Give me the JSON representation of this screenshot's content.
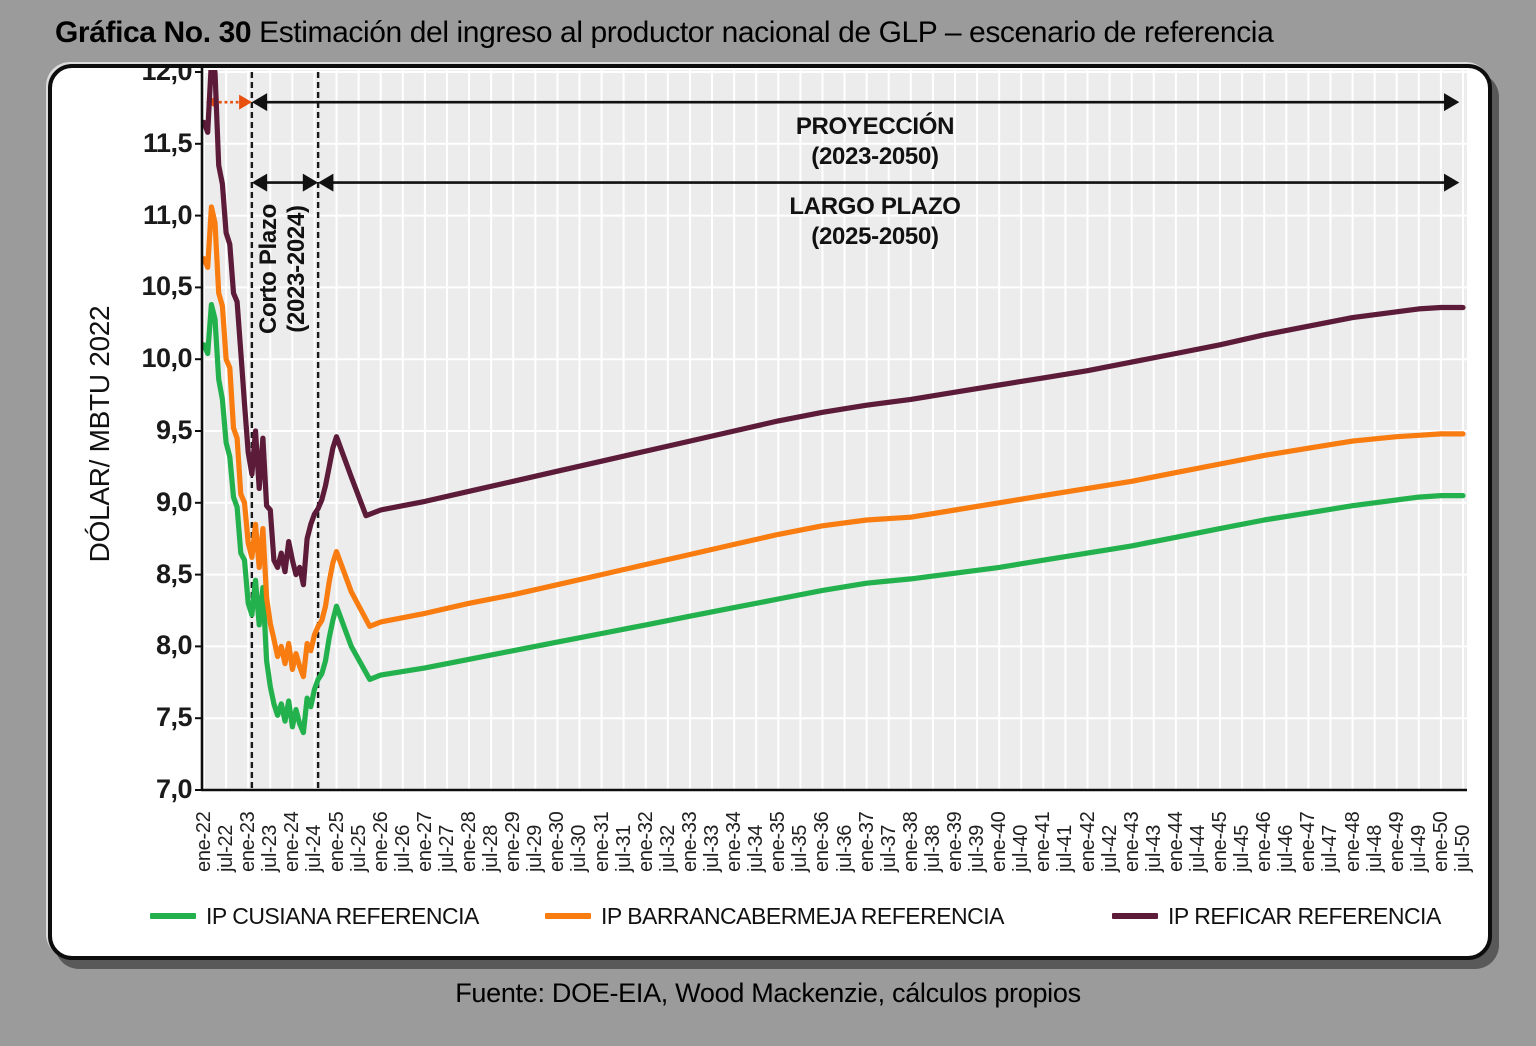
{
  "title": {
    "prefix": "Gráfica No. 30",
    "rest": " Estimación del ingreso al productor nacional de GLP – escenario de referencia"
  },
  "source": "Fuente: DOE-EIA, Wood Mackenzie, cálculos propios",
  "annotations": {
    "proyeccion": {
      "line1": "PROYECCIÓN",
      "line2": "(2023-2050)"
    },
    "largo_plazo": {
      "line1": "LARGO PLAZO",
      "line2": "(2025-2050)"
    },
    "corto_plazo": {
      "line1": "Corto Plazo",
      "line2": "(2023-2024)"
    }
  },
  "y_axis": {
    "title": "DÓLAR/ MBTU 2022",
    "labels": [
      "12,0",
      "11,5",
      "11,0",
      "10,5",
      "10,0",
      "9,5",
      "9,0",
      "8,5",
      "8,0",
      "7,5",
      "7,0"
    ],
    "min": 7.0,
    "max": 12.0,
    "step": 0.5
  },
  "x_axis": {
    "labels": [
      "ene-22",
      "jul-22",
      "ene-23",
      "jul-23",
      "ene-24",
      "jul-24",
      "ene-25",
      "jul-25",
      "ene-26",
      "jul-26",
      "ene-27",
      "jul-27",
      "ene-28",
      "jul-28",
      "ene-29",
      "jul-29",
      "ene-30",
      "jul-30",
      "ene-31",
      "jul-31",
      "ene-32",
      "jul-32",
      "ene-33",
      "jul-33",
      "ene-34",
      "jul-34",
      "ene-35",
      "jul-35",
      "ene-36",
      "jul-36",
      "ene-37",
      "jul-37",
      "ene-38",
      "jul-38",
      "ene-39",
      "jul-39",
      "ene-40",
      "jul-40",
      "ene-41",
      "jul-41",
      "ene-42",
      "jul-42",
      "ene-43",
      "jul-43",
      "ene-44",
      "jul-44",
      "ene-45",
      "jul-45",
      "ene-46",
      "jul-46",
      "ene-47",
      "jul-47",
      "ene-48",
      "jul-48",
      "ene-49",
      "jul-49",
      "ene-50",
      "jul-50"
    ]
  },
  "legend": [
    {
      "label": "IP CUSIANA REFERENCIA",
      "color": "#22B14C"
    },
    {
      "label": "IP BARRANCABERMEJA REFERENCIA",
      "color": "#F87C10"
    },
    {
      "label": "IP REFICAR REFERENCIA",
      "color": "#5C1B38"
    }
  ],
  "chart_data": {
    "type": "line",
    "title": "Estimación del ingreso al productor nacional de GLP – escenario de referencia",
    "ylabel": "DÓLAR/ MBTU 2022",
    "ylim": [
      7.0,
      12.0
    ],
    "grid": true,
    "legend_position": "bottom",
    "x_unit": "month index, 0 = ene-22 ... 342 = jul-50",
    "dashed_vlines_month": [
      13,
      31
    ],
    "arrows": [
      {
        "name": "proyeccion",
        "y_value": 11.79,
        "from_month": 13,
        "to_month": 341,
        "color": "#111111",
        "heads": "both"
      },
      {
        "name": "corto-plazo-orange",
        "y_value": 11.79,
        "from_month": 0.5,
        "to_month": 13,
        "color": "#E8500F",
        "style": "dotted",
        "heads": "both"
      },
      {
        "name": "corto-plazo-black",
        "y_value": 11.23,
        "from_month": 13,
        "to_month": 31,
        "color": "#111111",
        "heads": "both"
      },
      {
        "name": "largo-plazo",
        "y_value": 11.23,
        "from_month": 31,
        "to_month": 341,
        "color": "#111111",
        "heads": "both"
      }
    ],
    "series": [
      {
        "name": "IP CUSIANA REFERENCIA",
        "color": "#22B14C",
        "points": [
          [
            0,
            10.1
          ],
          [
            1,
            10.04
          ],
          [
            2,
            10.38
          ],
          [
            3,
            10.28
          ],
          [
            4,
            9.86
          ],
          [
            5,
            9.72
          ],
          [
            6,
            9.42
          ],
          [
            7,
            9.32
          ],
          [
            8,
            9.04
          ],
          [
            9,
            8.97
          ],
          [
            10,
            8.65
          ],
          [
            11,
            8.6
          ],
          [
            12,
            8.3
          ],
          [
            13,
            8.22
          ],
          [
            14,
            8.46
          ],
          [
            15,
            8.15
          ],
          [
            16,
            8.41
          ],
          [
            17,
            7.9
          ],
          [
            18,
            7.72
          ],
          [
            19,
            7.6
          ],
          [
            20,
            7.52
          ],
          [
            21,
            7.6
          ],
          [
            22,
            7.48
          ],
          [
            23,
            7.62
          ],
          [
            24,
            7.44
          ],
          [
            25,
            7.56
          ],
          [
            26,
            7.46
          ],
          [
            27,
            7.4
          ],
          [
            28,
            7.64
          ],
          [
            29,
            7.58
          ],
          [
            30,
            7.7
          ],
          [
            31,
            7.77
          ],
          [
            32,
            7.81
          ],
          [
            33,
            7.9
          ],
          [
            34,
            8.06
          ],
          [
            35,
            8.18
          ],
          [
            36,
            8.28
          ],
          [
            40,
            8.0
          ],
          [
            45,
            7.77
          ],
          [
            48,
            7.8
          ],
          [
            60,
            7.85
          ],
          [
            72,
            7.91
          ],
          [
            84,
            7.97
          ],
          [
            96,
            8.03
          ],
          [
            108,
            8.09
          ],
          [
            120,
            8.15
          ],
          [
            132,
            8.21
          ],
          [
            144,
            8.27
          ],
          [
            156,
            8.33
          ],
          [
            168,
            8.39
          ],
          [
            180,
            8.44
          ],
          [
            192,
            8.47
          ],
          [
            204,
            8.51
          ],
          [
            216,
            8.55
          ],
          [
            228,
            8.6
          ],
          [
            240,
            8.65
          ],
          [
            252,
            8.7
          ],
          [
            264,
            8.76
          ],
          [
            276,
            8.82
          ],
          [
            288,
            8.88
          ],
          [
            300,
            8.93
          ],
          [
            312,
            8.98
          ],
          [
            324,
            9.02
          ],
          [
            330,
            9.04
          ],
          [
            336,
            9.05
          ],
          [
            342,
            9.05
          ]
        ]
      },
      {
        "name": "IP BARRANCABERMEJA REFERENCIA",
        "color": "#F87C10",
        "points": [
          [
            0,
            10.7
          ],
          [
            1,
            10.64
          ],
          [
            2,
            11.06
          ],
          [
            3,
            10.95
          ],
          [
            4,
            10.46
          ],
          [
            5,
            10.37
          ],
          [
            6,
            10.0
          ],
          [
            7,
            9.94
          ],
          [
            8,
            9.52
          ],
          [
            9,
            9.45
          ],
          [
            10,
            9.06
          ],
          [
            11,
            9.0
          ],
          [
            12,
            8.72
          ],
          [
            13,
            8.62
          ],
          [
            14,
            8.85
          ],
          [
            15,
            8.55
          ],
          [
            16,
            8.82
          ],
          [
            17,
            8.34
          ],
          [
            18,
            8.16
          ],
          [
            19,
            8.05
          ],
          [
            20,
            7.93
          ],
          [
            21,
            8.0
          ],
          [
            22,
            7.88
          ],
          [
            23,
            8.02
          ],
          [
            24,
            7.84
          ],
          [
            25,
            7.95
          ],
          [
            26,
            7.86
          ],
          [
            27,
            7.79
          ],
          [
            28,
            8.02
          ],
          [
            29,
            7.97
          ],
          [
            30,
            8.08
          ],
          [
            31,
            8.14
          ],
          [
            32,
            8.18
          ],
          [
            33,
            8.28
          ],
          [
            34,
            8.45
          ],
          [
            35,
            8.58
          ],
          [
            36,
            8.66
          ],
          [
            40,
            8.38
          ],
          [
            45,
            8.14
          ],
          [
            48,
            8.17
          ],
          [
            60,
            8.23
          ],
          [
            72,
            8.3
          ],
          [
            84,
            8.36
          ],
          [
            96,
            8.43
          ],
          [
            108,
            8.5
          ],
          [
            120,
            8.57
          ],
          [
            132,
            8.64
          ],
          [
            144,
            8.71
          ],
          [
            156,
            8.78
          ],
          [
            168,
            8.84
          ],
          [
            180,
            8.88
          ],
          [
            192,
            8.9
          ],
          [
            204,
            8.95
          ],
          [
            216,
            9.0
          ],
          [
            228,
            9.05
          ],
          [
            240,
            9.1
          ],
          [
            252,
            9.15
          ],
          [
            264,
            9.21
          ],
          [
            276,
            9.27
          ],
          [
            288,
            9.33
          ],
          [
            300,
            9.38
          ],
          [
            312,
            9.43
          ],
          [
            324,
            9.46
          ],
          [
            330,
            9.47
          ],
          [
            336,
            9.48
          ],
          [
            342,
            9.48
          ]
        ]
      },
      {
        "name": "IP REFICAR REFERENCIA",
        "color": "#5C1B38",
        "points": [
          [
            0,
            11.65
          ],
          [
            1,
            11.58
          ],
          [
            2,
            12.07
          ],
          [
            3,
            12.0
          ],
          [
            4,
            11.35
          ],
          [
            5,
            11.22
          ],
          [
            6,
            10.88
          ],
          [
            7,
            10.8
          ],
          [
            8,
            10.46
          ],
          [
            9,
            10.4
          ],
          [
            10,
            10.05
          ],
          [
            11,
            9.69
          ],
          [
            12,
            9.35
          ],
          [
            13,
            9.2
          ],
          [
            14,
            9.5
          ],
          [
            15,
            9.1
          ],
          [
            16,
            9.45
          ],
          [
            17,
            8.98
          ],
          [
            18,
            8.95
          ],
          [
            19,
            8.6
          ],
          [
            20,
            8.55
          ],
          [
            21,
            8.65
          ],
          [
            22,
            8.52
          ],
          [
            23,
            8.73
          ],
          [
            24,
            8.6
          ],
          [
            25,
            8.5
          ],
          [
            26,
            8.55
          ],
          [
            27,
            8.43
          ],
          [
            28,
            8.75
          ],
          [
            29,
            8.85
          ],
          [
            30,
            8.92
          ],
          [
            31,
            8.96
          ],
          [
            32,
            9.02
          ],
          [
            33,
            9.12
          ],
          [
            34,
            9.25
          ],
          [
            35,
            9.38
          ],
          [
            36,
            9.46
          ],
          [
            40,
            9.18
          ],
          [
            44,
            8.91
          ],
          [
            48,
            8.95
          ],
          [
            60,
            9.01
          ],
          [
            72,
            9.08
          ],
          [
            84,
            9.15
          ],
          [
            96,
            9.22
          ],
          [
            108,
            9.29
          ],
          [
            120,
            9.36
          ],
          [
            132,
            9.43
          ],
          [
            144,
            9.5
          ],
          [
            156,
            9.57
          ],
          [
            168,
            9.63
          ],
          [
            180,
            9.68
          ],
          [
            192,
            9.72
          ],
          [
            204,
            9.77
          ],
          [
            216,
            9.82
          ],
          [
            228,
            9.87
          ],
          [
            240,
            9.92
          ],
          [
            252,
            9.98
          ],
          [
            264,
            10.04
          ],
          [
            276,
            10.1
          ],
          [
            288,
            10.17
          ],
          [
            300,
            10.23
          ],
          [
            312,
            10.29
          ],
          [
            324,
            10.33
          ],
          [
            330,
            10.35
          ],
          [
            336,
            10.36
          ],
          [
            342,
            10.36
          ]
        ]
      }
    ]
  }
}
